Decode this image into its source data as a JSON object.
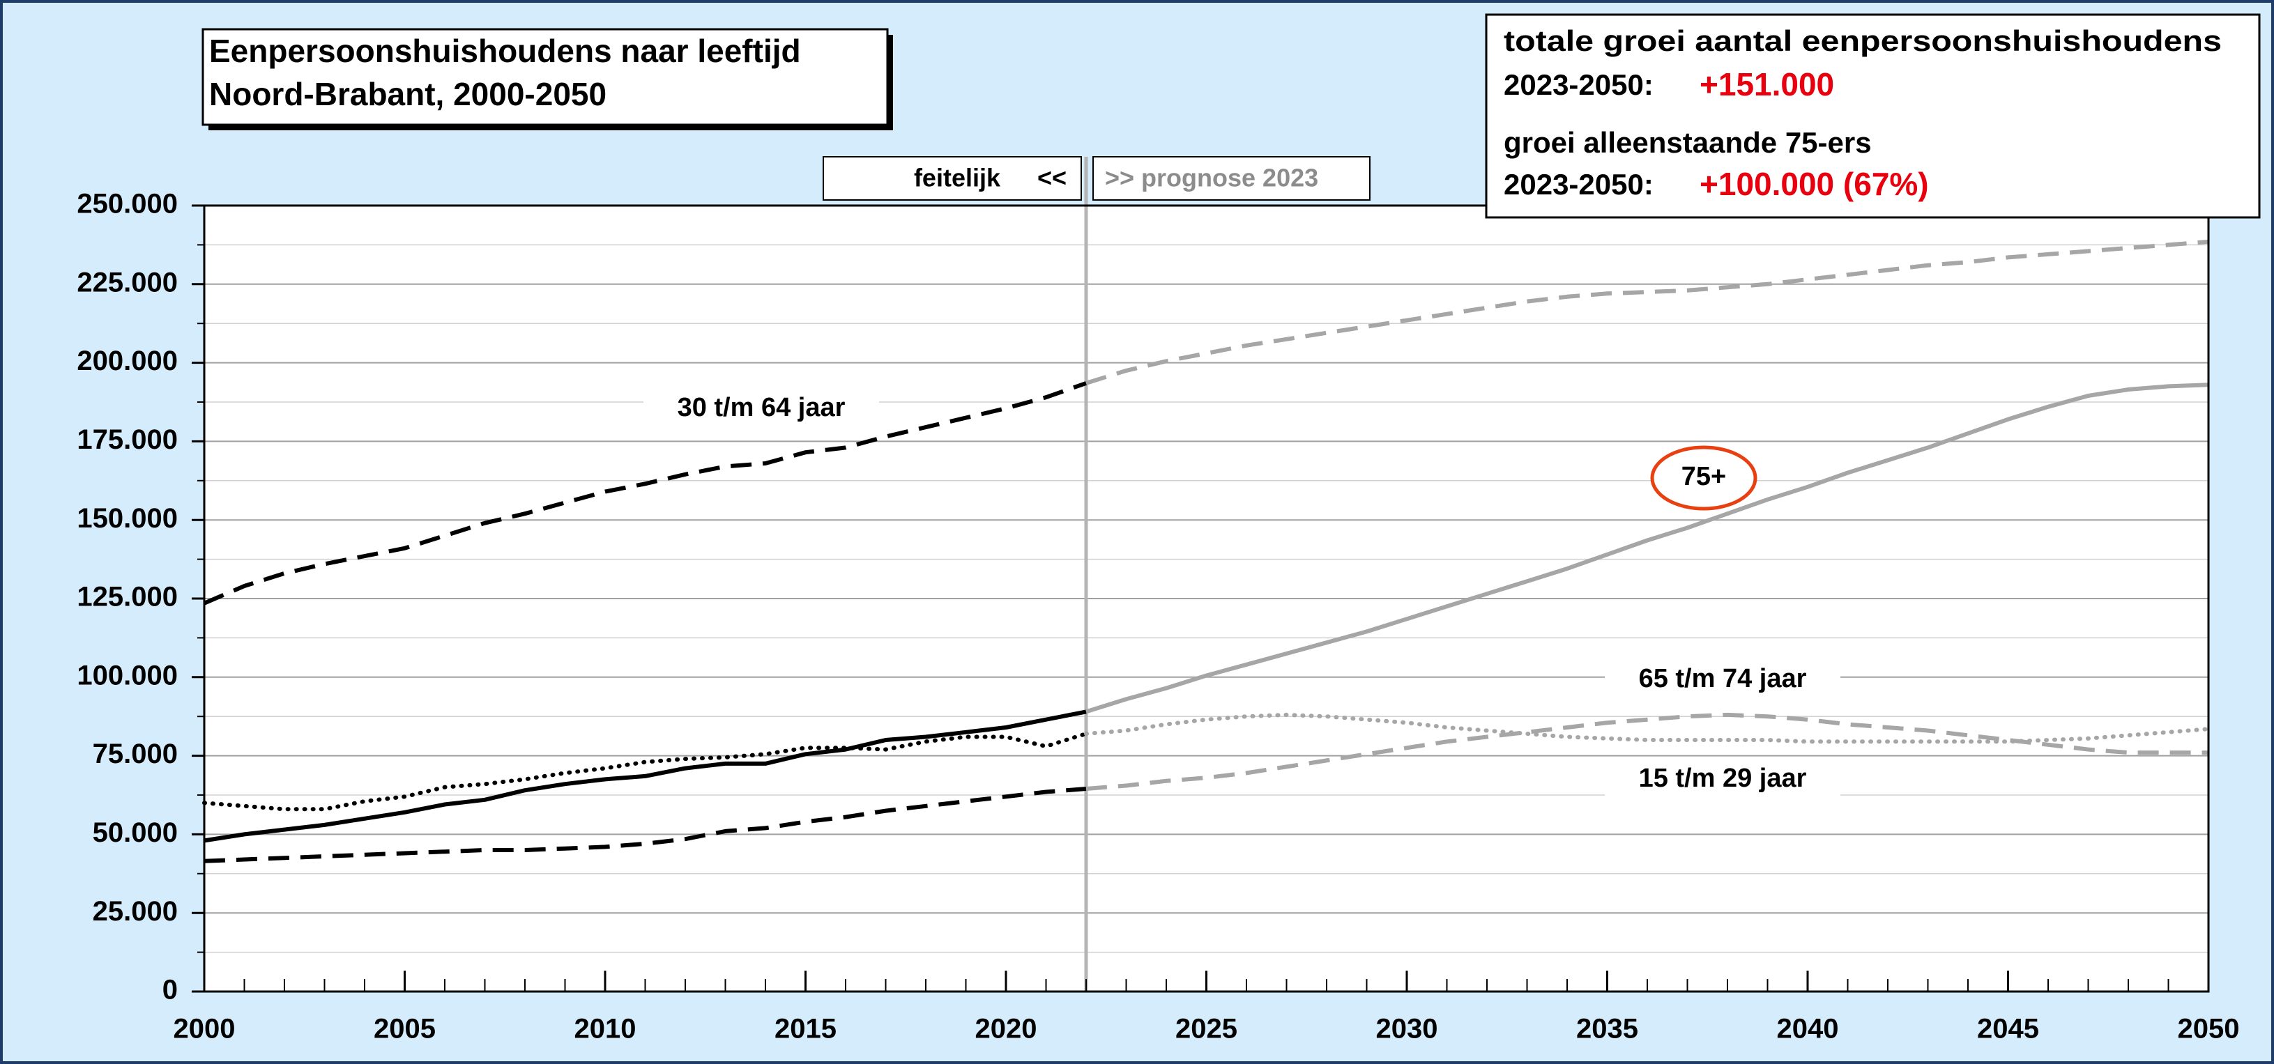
{
  "chart_data": {
    "type": "line",
    "title": [
      "Eenpersoonshuishoudens naar leeftijd",
      "Noord-Brabant, 2000-2050"
    ],
    "info": {
      "line1": "totale groei aantal eenpersoonshuishoudens",
      "period1": "2023-2050:",
      "value1": "+151.000",
      "line2": "groei alleenstaande 75-ers",
      "period2": "2023-2050:",
      "value2": "+100.000 (67%)"
    },
    "actual_label": "feitelijk",
    "actual_arrow": "<<",
    "forecast_label": ">> prognose 2023",
    "forecast_from": 2022,
    "forecast_color": "#a6a6a6",
    "x": [
      2000,
      2001,
      2002,
      2003,
      2004,
      2005,
      2006,
      2007,
      2008,
      2009,
      2010,
      2011,
      2012,
      2013,
      2014,
      2015,
      2016,
      2017,
      2018,
      2019,
      2020,
      2021,
      2022,
      2023,
      2024,
      2025,
      2026,
      2027,
      2028,
      2029,
      2030,
      2031,
      2032,
      2033,
      2034,
      2035,
      2036,
      2037,
      2038,
      2039,
      2040,
      2041,
      2042,
      2043,
      2044,
      2045,
      2046,
      2047,
      2048,
      2049,
      2050
    ],
    "series": [
      {
        "name": "75+",
        "color": "#000000",
        "style": "solid",
        "values": [
          48000,
          50000,
          51500,
          53000,
          55000,
          57000,
          59500,
          61000,
          64000,
          66000,
          67500,
          68500,
          71000,
          72500,
          72500,
          75500,
          77000,
          80000,
          81000,
          82500,
          84000,
          86500,
          89000,
          93000,
          96500,
          100500,
          104000,
          107500,
          111000,
          114500,
          118500,
          122500,
          126500,
          130500,
          134500,
          139000,
          143500,
          147500,
          152000,
          156500,
          160500,
          165000,
          169000,
          173000,
          177500,
          182000,
          186000,
          189500,
          191500,
          192500,
          193000
        ]
      },
      {
        "name": "65 t/m 74 jaar",
        "color": "#000000",
        "style": "dotted",
        "values": [
          60000,
          59000,
          58000,
          58000,
          60500,
          62000,
          65000,
          66000,
          67500,
          69500,
          71000,
          73000,
          74000,
          74500,
          75500,
          77500,
          77500,
          77000,
          79500,
          81000,
          81000,
          78000,
          82000,
          83000,
          85000,
          86500,
          87500,
          88000,
          87500,
          86500,
          85500,
          84000,
          83000,
          82000,
          81000,
          80500,
          80000,
          80000,
          80000,
          80000,
          79500,
          79500,
          79500,
          79500,
          79500,
          79500,
          80000,
          80500,
          81500,
          82500,
          83500
        ]
      },
      {
        "name": "30 t/m 64 jaar",
        "color": "#000000",
        "style": "dashed",
        "values": [
          123500,
          129000,
          133000,
          136000,
          138500,
          141000,
          145000,
          149000,
          152000,
          155500,
          159000,
          161500,
          164500,
          167000,
          168000,
          171500,
          173000,
          176500,
          179500,
          182500,
          185500,
          189000,
          193500,
          197500,
          200500,
          203000,
          205500,
          207500,
          209500,
          211500,
          213500,
          215500,
          217500,
          219500,
          221000,
          222000,
          222500,
          223000,
          224000,
          225000,
          226500,
          228000,
          229500,
          231000,
          232000,
          233500,
          234500,
          235500,
          236500,
          237500,
          238500
        ]
      },
      {
        "name": "15 t/m 29 jaar",
        "color": "#000000",
        "style": "dashed",
        "values": [
          41500,
          42000,
          42500,
          43000,
          43500,
          44000,
          44500,
          45000,
          45000,
          45500,
          46000,
          47000,
          48500,
          51000,
          52000,
          54000,
          55500,
          57500,
          59000,
          60500,
          62000,
          63500,
          64500,
          65500,
          67000,
          68000,
          69500,
          71500,
          73500,
          75500,
          77500,
          79500,
          81000,
          82500,
          84000,
          85500,
          86500,
          87500,
          88000,
          87500,
          86500,
          85000,
          84000,
          83000,
          81500,
          80000,
          78500,
          77000,
          76000,
          76000,
          76000
        ]
      }
    ],
    "xlim": [
      2000,
      2050
    ],
    "xticks": [
      2000,
      2005,
      2010,
      2015,
      2020,
      2025,
      2030,
      2035,
      2040,
      2045,
      2050
    ],
    "ylim": [
      0,
      250000
    ],
    "yticks": [
      0,
      {
        "value": 25000,
        "label": "25.000"
      },
      {
        "value": 50000,
        "label": "50.000"
      },
      {
        "value": 75000,
        "label": "75.000"
      },
      {
        "value": 100000,
        "label": "100.000"
      },
      {
        "value": 125000,
        "label": "125.000"
      },
      {
        "value": 150000,
        "label": "150.000"
      },
      {
        "value": 175000,
        "label": "175.000"
      },
      {
        "value": 200000,
        "label": "200.000"
      },
      {
        "value": 225000,
        "label": "225.000"
      },
      {
        "value": 250000,
        "label": "250.000"
      }
    ],
    "grid": true
  }
}
